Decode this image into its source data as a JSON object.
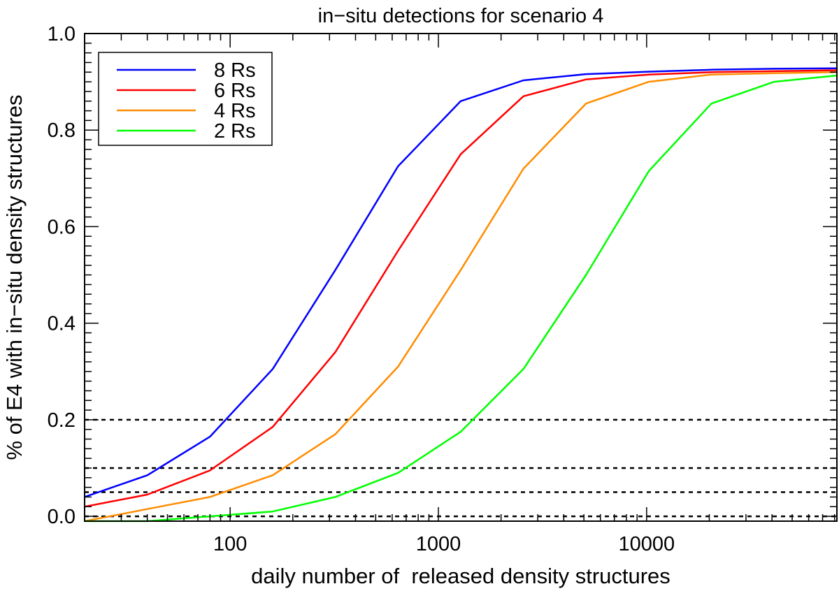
{
  "chart_data": {
    "type": "line",
    "title": "in−situ detections for scenario 4",
    "xlabel": "daily number of  released density structures",
    "ylabel": "% of E4 with in−situ density structures",
    "x_scale": "log",
    "xlim": [
      20,
      82000
    ],
    "ylim": [
      -0.01,
      1.0
    ],
    "xticks": [
      {
        "value": 100,
        "label": "100"
      },
      {
        "value": 1000,
        "label": "1000"
      },
      {
        "value": 10000,
        "label": "10000"
      }
    ],
    "yticks": [
      {
        "value": 0.0,
        "label": "0.0"
      },
      {
        "value": 0.2,
        "label": "0.2"
      },
      {
        "value": 0.4,
        "label": "0.4"
      },
      {
        "value": 0.6,
        "label": "0.6"
      },
      {
        "value": 0.8,
        "label": "0.8"
      },
      {
        "value": 1.0,
        "label": "1.0"
      }
    ],
    "grid": false,
    "legend_position": "top-left",
    "reference_lines": [
      {
        "y": 0.2,
        "style": "dashed"
      },
      {
        "y": 0.1,
        "style": "dashed"
      },
      {
        "y": 0.05,
        "style": "dashed"
      },
      {
        "y": 0.0,
        "style": "dashed"
      }
    ],
    "series": [
      {
        "name": "8 Rs",
        "color": "#0000ff",
        "x": [
          20,
          40,
          80,
          160,
          320,
          640,
          1280,
          2560,
          5120,
          10240,
          20480,
          40960,
          82000
        ],
        "y": [
          0.04,
          0.085,
          0.165,
          0.305,
          0.51,
          0.725,
          0.86,
          0.903,
          0.916,
          0.921,
          0.925,
          0.927,
          0.928
        ]
      },
      {
        "name": "6 Rs",
        "color": "#ff0000",
        "x": [
          20,
          40,
          80,
          160,
          320,
          640,
          1280,
          2560,
          5120,
          10240,
          20480,
          40960,
          82000
        ],
        "y": [
          0.02,
          0.045,
          0.095,
          0.185,
          0.34,
          0.55,
          0.75,
          0.87,
          0.905,
          0.915,
          0.92,
          0.922,
          0.924
        ]
      },
      {
        "name": "4 Rs",
        "color": "#ff8c00",
        "x": [
          20,
          40,
          80,
          160,
          320,
          640,
          1280,
          2560,
          5120,
          10240,
          20480,
          40960,
          82000
        ],
        "y": [
          -0.01,
          0.015,
          0.04,
          0.085,
          0.17,
          0.31,
          0.51,
          0.72,
          0.855,
          0.9,
          0.915,
          0.918,
          0.92
        ]
      },
      {
        "name": "2 Rs",
        "color": "#00ff00",
        "x": [
          20,
          40,
          80,
          160,
          320,
          640,
          1280,
          2560,
          5120,
          10240,
          20480,
          40960,
          82000
        ],
        "y": [
          -0.01,
          -0.01,
          0.0,
          0.01,
          0.04,
          0.09,
          0.175,
          0.305,
          0.5,
          0.715,
          0.855,
          0.9,
          0.913
        ]
      }
    ]
  }
}
